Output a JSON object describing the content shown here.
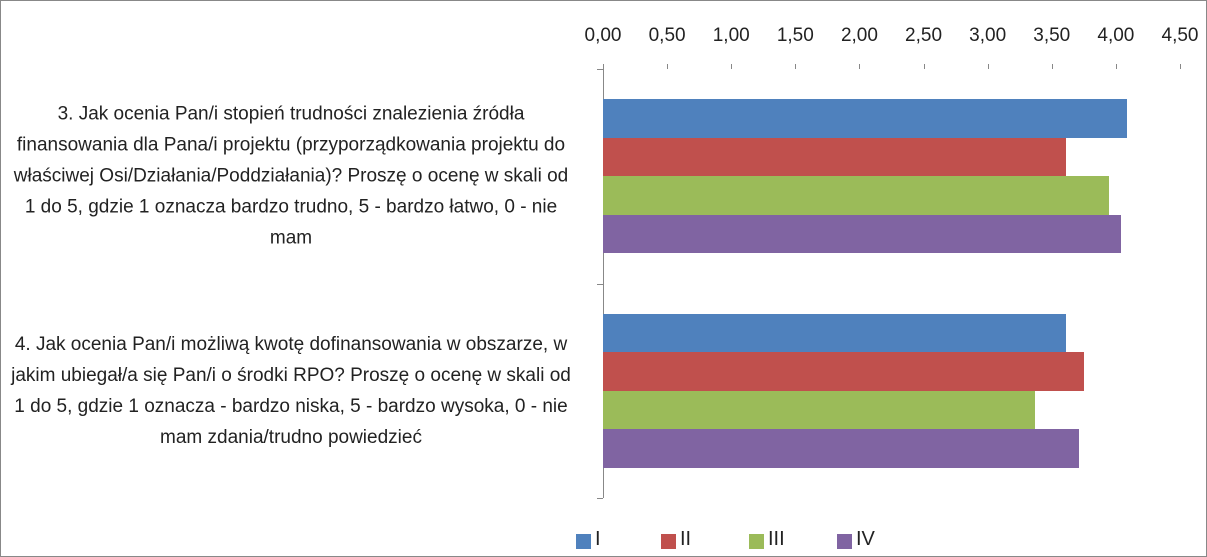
{
  "chart_data": {
    "type": "bar",
    "orientation": "horizontal",
    "categories": [
      "3. Jak ocenia Pan/i stopień trudności znalezienia źródła finansowania dla Pana/i projektu (przyporządkowania projektu do właściwej Osi/Działania/Poddziałania)? Proszę o ocenę w skali od 1 do 5, gdzie 1 oznacza bardzo trudno, 5 - bardzo łatwo, 0 - nie mam",
      "4. Jak ocenia Pan/i możliwą kwotę dofinansowania w obszarze, w jakim ubiegał/a się Pan/i o środki RPO? Proszę o ocenę w skali od 1 do 5, gdzie 1 oznacza - bardzo niska, 5 - bardzo wysoka, 0 - nie mam zdania/trudno powiedzieć"
    ],
    "series": [
      {
        "name": "I",
        "color": "#4f81bd",
        "values": [
          4.09,
          3.61
        ]
      },
      {
        "name": "II",
        "color": "#c0504d",
        "values": [
          3.61,
          3.75
        ]
      },
      {
        "name": "III",
        "color": "#9bbb59",
        "values": [
          3.95,
          3.37
        ]
      },
      {
        "name": "IV",
        "color": "#8064a2",
        "values": [
          4.04,
          3.71
        ]
      }
    ],
    "xlim": [
      0,
      4.5
    ],
    "xticks": [
      {
        "value": 0,
        "label": "0,00"
      },
      {
        "value": 0.5,
        "label": "0,50"
      },
      {
        "value": 1,
        "label": "1,00"
      },
      {
        "value": 1.5,
        "label": "1,50"
      },
      {
        "value": 2,
        "label": "2,00"
      },
      {
        "value": 2.5,
        "label": "2,50"
      },
      {
        "value": 3,
        "label": "3,00"
      },
      {
        "value": 3.5,
        "label": "3,50"
      },
      {
        "value": 4,
        "label": "4,00"
      },
      {
        "value": 4.5,
        "label": "4,50"
      }
    ],
    "grid": false,
    "legend": "bottom"
  }
}
